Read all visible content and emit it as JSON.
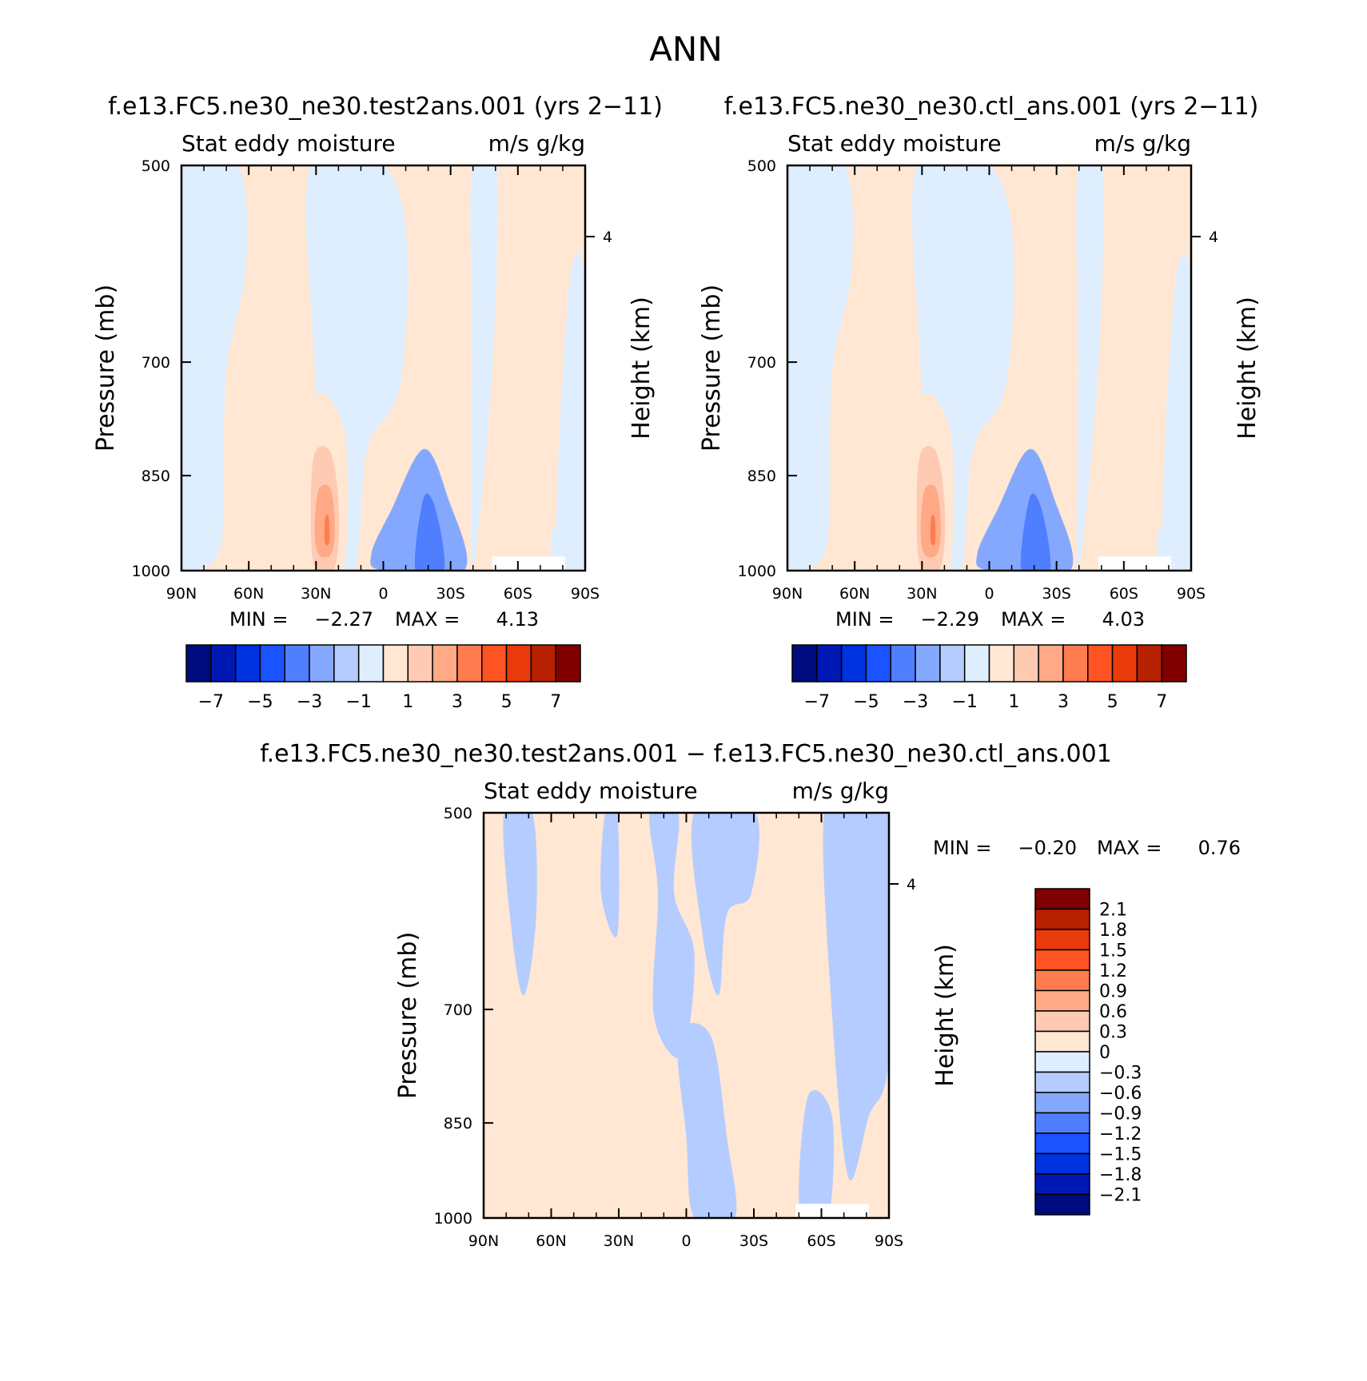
{
  "page_title": "ANN",
  "palette": {
    "negative": [
      "#000c7d",
      "#0019b5",
      "#0033e0",
      "#1a53ff",
      "#4f7fff",
      "#85a8ff",
      "#b4ccff",
      "#deeeff"
    ],
    "positive": [
      "#ffe7d3",
      "#ffcab2",
      "#ffa986",
      "#ff7c51",
      "#ff5323",
      "#e83a0a",
      "#b82002",
      "#800000"
    ]
  },
  "panel_labels": {
    "stat_label": "Stat eddy moisture",
    "units_label": "m/s g/kg"
  },
  "chart_data": [
    {
      "type": "heatmap",
      "title": "f.e13.FC5.ne30_ne30.test2ans.001 (yrs 2−11)",
      "field": "Stat eddy moisture",
      "units": "m/s g/kg",
      "xlabel": "",
      "ylabel": "Pressure (mb)",
      "ylabel_right": "Height (km)",
      "x_ticks": [
        "90N",
        "60N",
        "30N",
        "0",
        "30S",
        "60S",
        "90S"
      ],
      "x_range": [
        90,
        -90
      ],
      "y_ticks": [
        500,
        700,
        850,
        1000
      ],
      "y_range": [
        1000,
        500
      ],
      "height_ticks": [
        4
      ],
      "min_label": "MIN =",
      "min": "−2.27",
      "max_label": "MAX =",
      "max": "4.13",
      "colorbar": {
        "orientation": "horizontal",
        "levels": [
          -7,
          -6,
          -5,
          -4,
          -3,
          -2,
          -1,
          0,
          1,
          2,
          3,
          4,
          5,
          6,
          7
        ],
        "labels": [
          "−7",
          "−5",
          "−3",
          "−1",
          "1",
          "3",
          "5",
          "7"
        ]
      }
    },
    {
      "type": "heatmap",
      "title": "f.e13.FC5.ne30_ne30.ctl_ans.001 (yrs 2−11)",
      "field": "Stat eddy moisture",
      "units": "m/s g/kg",
      "xlabel": "",
      "ylabel": "Pressure (mb)",
      "ylabel_right": "Height (km)",
      "x_ticks": [
        "90N",
        "60N",
        "30N",
        "0",
        "30S",
        "60S",
        "90S"
      ],
      "x_range": [
        90,
        -90
      ],
      "y_ticks": [
        500,
        700,
        850,
        1000
      ],
      "y_range": [
        1000,
        500
      ],
      "height_ticks": [
        4
      ],
      "min_label": "MIN =",
      "min": "−2.29",
      "max_label": "MAX =",
      "max": "4.03",
      "colorbar": {
        "orientation": "horizontal",
        "levels": [
          -7,
          -6,
          -5,
          -4,
          -3,
          -2,
          -1,
          0,
          1,
          2,
          3,
          4,
          5,
          6,
          7
        ],
        "labels": [
          "−7",
          "−5",
          "−3",
          "−1",
          "1",
          "3",
          "5",
          "7"
        ]
      }
    },
    {
      "type": "heatmap",
      "title": "f.e13.FC5.ne30_ne30.test2ans.001 − f.e13.FC5.ne30_ne30.ctl_ans.001",
      "field": "Stat eddy moisture",
      "units": "m/s g/kg",
      "xlabel": "",
      "ylabel": "Pressure (mb)",
      "ylabel_right": "Height (km)",
      "x_ticks": [
        "90N",
        "60N",
        "30N",
        "0",
        "30S",
        "60S",
        "90S"
      ],
      "x_range": [
        90,
        -90
      ],
      "y_ticks": [
        500,
        700,
        850,
        1000
      ],
      "y_range": [
        1000,
        500
      ],
      "height_ticks": [
        4
      ],
      "min_label": "MIN =",
      "min": "−0.20",
      "max_label": "MAX =",
      "max": "0.76",
      "colorbar": {
        "orientation": "vertical",
        "levels": [
          2.1,
          1.8,
          1.5,
          1.2,
          0.9,
          0.6,
          0.3,
          0,
          -0.3,
          -0.6,
          -0.9,
          -1.2,
          -1.5,
          -1.8,
          -2.1
        ],
        "labels": [
          "2.1",
          "1.8",
          "1.5",
          "1.2",
          "0.9",
          "0.6",
          "0.3",
          "0",
          "−0.3",
          "−0.6",
          "−0.9",
          "−1.2",
          "−1.5",
          "−1.8",
          "−2.1"
        ]
      }
    }
  ]
}
